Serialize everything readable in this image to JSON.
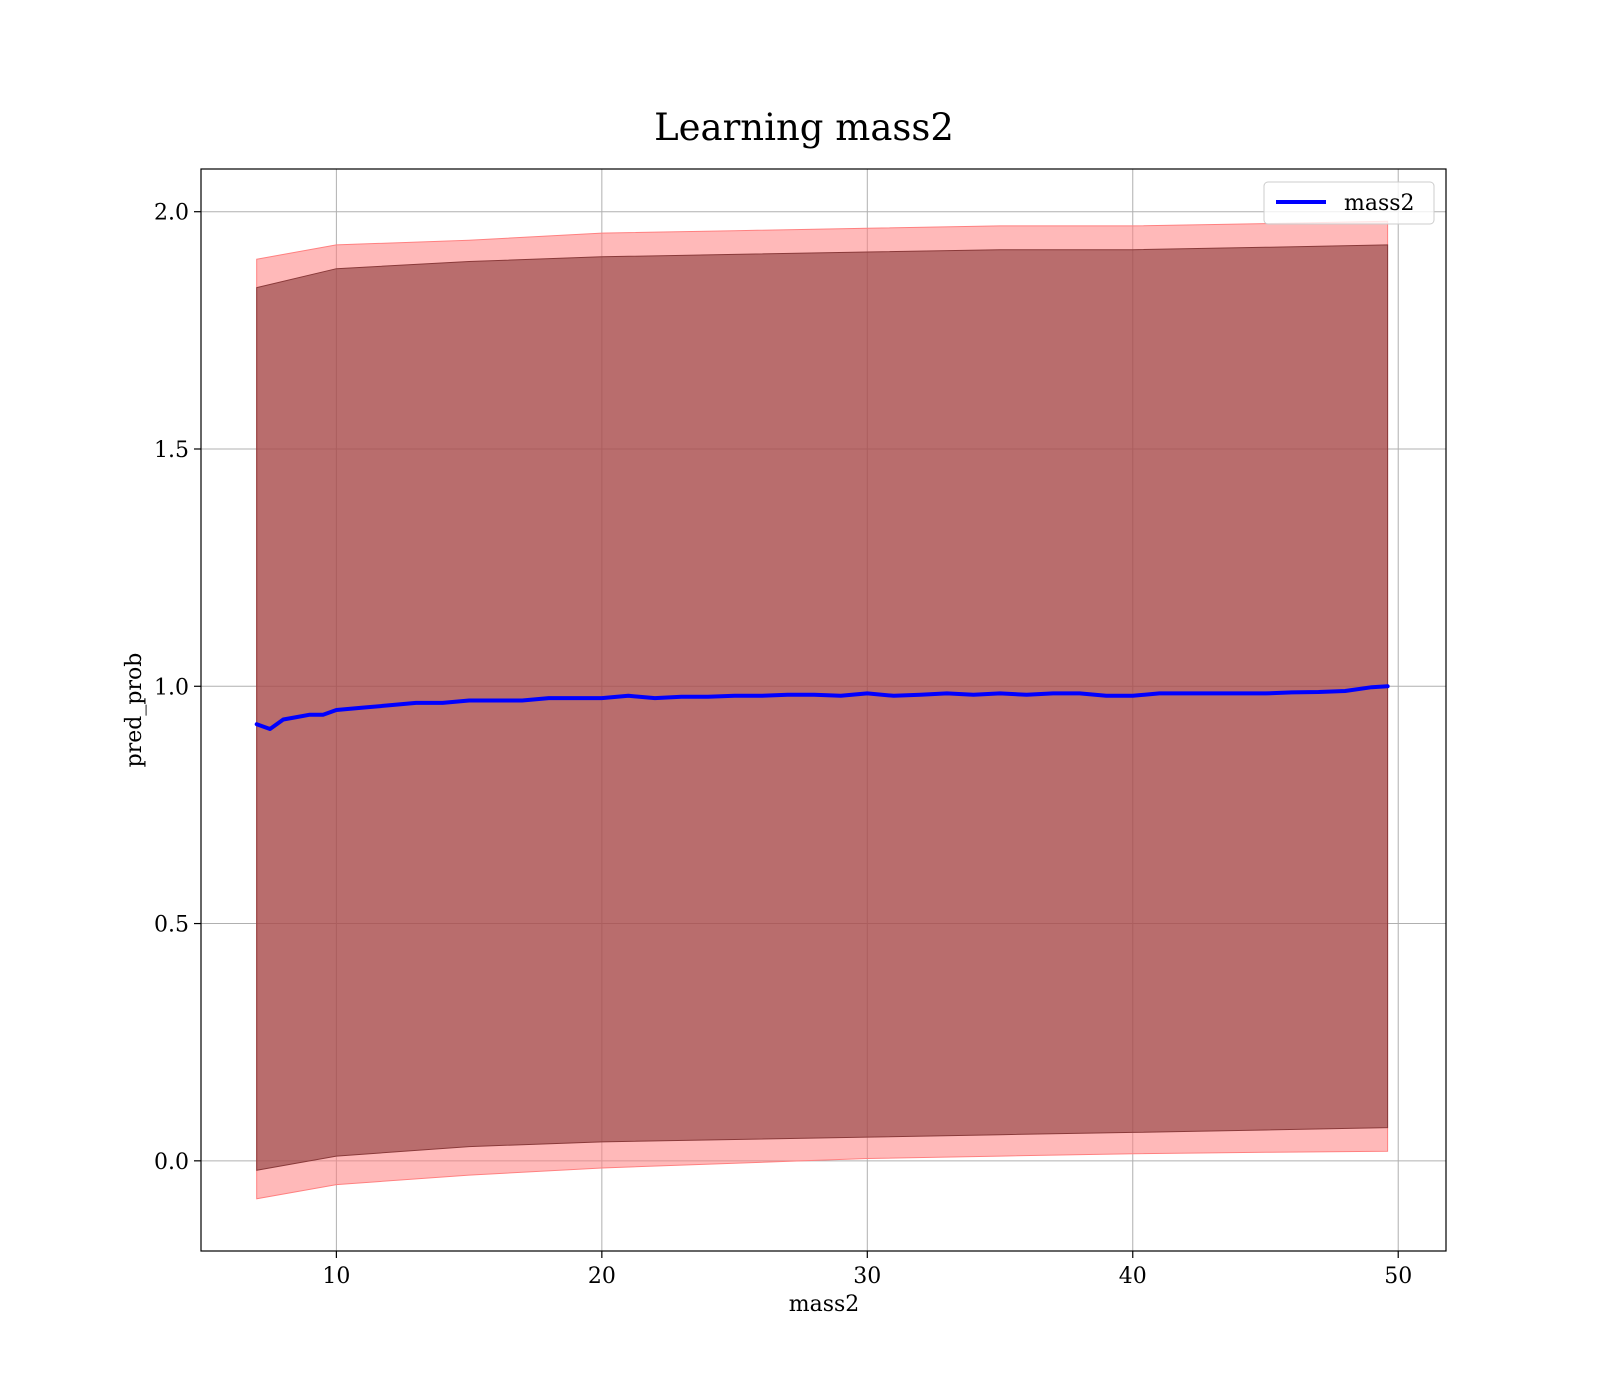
{
  "chart_data": {
    "type": "line",
    "title": "Learning mass2",
    "xlabel": "mass2",
    "ylabel": "pred_prob",
    "xlim": [
      4.9,
      51.8
    ],
    "ylim": [
      -0.19,
      2.09
    ],
    "xticks": [
      10,
      20,
      30,
      40,
      50
    ],
    "yticks": [
      0.0,
      0.5,
      1.0,
      1.5,
      2.0
    ],
    "xtick_labels": [
      "10",
      "20",
      "30",
      "40",
      "50"
    ],
    "ytick_labels": [
      "0.0",
      "0.5",
      "1.0",
      "1.5",
      "2.0"
    ],
    "grid": true,
    "legend": {
      "position": "upper right",
      "entries": [
        "mass2"
      ]
    },
    "series": [
      {
        "name": "mass2",
        "color": "#0000ff",
        "x": [
          7.0,
          7.5,
          8.0,
          8.5,
          9.0,
          9.5,
          10.0,
          11.0,
          12.0,
          13.0,
          14.0,
          15.0,
          16.0,
          17.0,
          18.0,
          19.0,
          20.0,
          21.0,
          22.0,
          23.0,
          24.0,
          25.0,
          26.0,
          27.0,
          28.0,
          29.0,
          30.0,
          31.0,
          32.0,
          33.0,
          34.0,
          35.0,
          36.0,
          37.0,
          38.0,
          39.0,
          40.0,
          41.0,
          42.0,
          43.0,
          44.0,
          45.0,
          46.0,
          47.0,
          48.0,
          49.0,
          49.6
        ],
        "y": [
          0.92,
          0.91,
          0.93,
          0.935,
          0.94,
          0.94,
          0.95,
          0.955,
          0.96,
          0.965,
          0.965,
          0.97,
          0.97,
          0.97,
          0.975,
          0.975,
          0.975,
          0.98,
          0.975,
          0.978,
          0.978,
          0.98,
          0.98,
          0.982,
          0.982,
          0.98,
          0.985,
          0.98,
          0.982,
          0.985,
          0.982,
          0.985,
          0.982,
          0.985,
          0.985,
          0.98,
          0.98,
          0.985,
          0.985,
          0.985,
          0.985,
          0.985,
          0.987,
          0.988,
          0.99,
          0.998,
          1.0
        ]
      }
    ],
    "bands": [
      {
        "color": "#ff8080",
        "x": [
          7.0,
          10.0,
          15.0,
          20.0,
          25.0,
          30.0,
          35.0,
          40.0,
          45.0,
          49.6
        ],
        "upper": [
          1.9,
          1.93,
          1.94,
          1.955,
          1.96,
          1.965,
          1.97,
          1.97,
          1.975,
          1.98
        ],
        "lower": [
          -0.08,
          -0.05,
          -0.03,
          -0.015,
          -0.005,
          0.005,
          0.01,
          0.015,
          0.018,
          0.02
        ]
      },
      {
        "color": "#8a3a3a",
        "x": [
          7.0,
          10.0,
          15.0,
          20.0,
          25.0,
          30.0,
          35.0,
          40.0,
          45.0,
          49.6
        ],
        "upper": [
          1.84,
          1.88,
          1.895,
          1.905,
          1.91,
          1.915,
          1.92,
          1.92,
          1.925,
          1.93
        ],
        "lower": [
          -0.02,
          0.01,
          0.03,
          0.04,
          0.045,
          0.05,
          0.055,
          0.06,
          0.065,
          0.07
        ]
      }
    ]
  }
}
